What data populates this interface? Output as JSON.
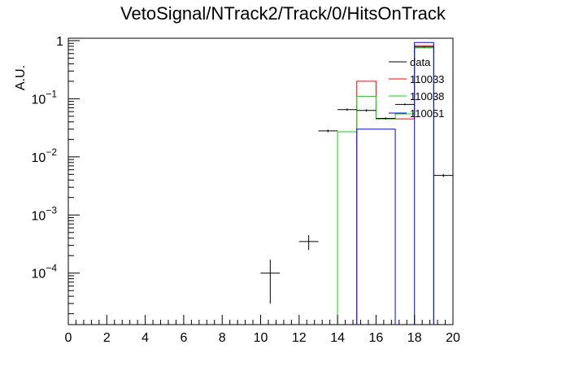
{
  "chart_data": {
    "type": "histogram",
    "title": "VetoSignal/NTrack2/Track/0/HitsOnTrack",
    "xlabel": "",
    "ylabel": "A.U.",
    "xlim": [
      0,
      20
    ],
    "ylim": [
      1.3e-05,
      1.1
    ],
    "yscale": "log",
    "grid": false,
    "legend_placement": "top-right",
    "x_ticks": [
      0,
      2,
      4,
      6,
      8,
      10,
      12,
      14,
      16,
      18,
      20
    ],
    "x_tick_labels": [
      "0",
      "2",
      "4",
      "6",
      "8",
      "10",
      "12",
      "14",
      "16",
      "18",
      "20"
    ],
    "y_ticks": [
      0.0001,
      0.001,
      0.01,
      0.1,
      1
    ],
    "y_tick_labels": [
      {
        "base": "10",
        "exp": "−4"
      },
      {
        "base": "10",
        "exp": "−3"
      },
      {
        "base": "10",
        "exp": "−2"
      },
      {
        "base": "10",
        "exp": "−1"
      },
      {
        "base": "1",
        "exp": ""
      }
    ],
    "bin_edges": [
      0,
      1,
      2,
      3,
      4,
      5,
      6,
      7,
      8,
      9,
      10,
      11,
      12,
      13,
      14,
      15,
      16,
      17,
      18,
      19,
      20
    ],
    "data": {
      "name": "data",
      "color": "#000000",
      "points": [
        {
          "x": 10.5,
          "y": 0.0001,
          "ylo": 3e-05,
          "yhi": 0.00017
        },
        {
          "x": 12.5,
          "y": 0.00035,
          "ylo": 0.00025,
          "yhi": 0.00045
        },
        {
          "x": 13.5,
          "y": 0.028,
          "ylo": 0.0265,
          "yhi": 0.0295
        },
        {
          "x": 14.5,
          "y": 0.065,
          "ylo": 0.062,
          "yhi": 0.068
        },
        {
          "x": 15.5,
          "y": 0.063,
          "ylo": 0.06,
          "yhi": 0.066
        },
        {
          "x": 16.5,
          "y": 0.046,
          "ylo": 0.044,
          "yhi": 0.048
        },
        {
          "x": 17.5,
          "y": 0.08,
          "ylo": 0.077,
          "yhi": 0.083
        },
        {
          "x": 18.5,
          "y": 0.78,
          "ylo": 0.76,
          "yhi": 0.8
        },
        {
          "x": 19.5,
          "y": 0.0048,
          "ylo": 0.0045,
          "yhi": 0.0051
        }
      ]
    },
    "series": [
      {
        "name": "110033",
        "color": "#ff0000",
        "bins": [
          {
            "lo": 15,
            "hi": 16,
            "y": 0.2
          },
          {
            "lo": 16,
            "hi": 17,
            "y": 0.045
          },
          {
            "lo": 17,
            "hi": 18,
            "y": 0.045
          },
          {
            "lo": 18,
            "hi": 19,
            "y": 0.82
          }
        ]
      },
      {
        "name": "110038",
        "color": "#00dd00",
        "bins": [
          {
            "lo": 14,
            "hi": 15,
            "y": 0.027
          },
          {
            "lo": 15,
            "hi": 16,
            "y": 0.11
          },
          {
            "lo": 16,
            "hi": 17,
            "y": 0.045
          },
          {
            "lo": 17,
            "hi": 18,
            "y": 0.055
          },
          {
            "lo": 18,
            "hi": 19,
            "y": 0.75
          }
        ]
      },
      {
        "name": "110051",
        "color": "#0000ff",
        "bins": [
          {
            "lo": 15,
            "hi": 16,
            "y": 0.03
          },
          {
            "lo": 16,
            "hi": 17,
            "y": 0.03
          },
          {
            "lo": 18,
            "hi": 19,
            "y": 0.93
          }
        ]
      }
    ]
  }
}
